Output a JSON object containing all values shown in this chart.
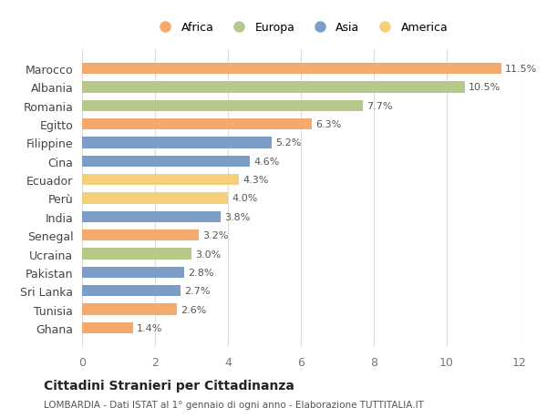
{
  "countries": [
    "Marocco",
    "Albania",
    "Romania",
    "Egitto",
    "Filippine",
    "Cina",
    "Ecuador",
    "Perù",
    "India",
    "Senegal",
    "Ucraina",
    "Pakistan",
    "Sri Lanka",
    "Tunisia",
    "Ghana"
  ],
  "values": [
    11.5,
    10.5,
    7.7,
    6.3,
    5.2,
    4.6,
    4.3,
    4.0,
    3.8,
    3.2,
    3.0,
    2.8,
    2.7,
    2.6,
    1.4
  ],
  "continents": [
    "Africa",
    "Europa",
    "Europa",
    "Africa",
    "Asia",
    "Asia",
    "America",
    "America",
    "Asia",
    "Africa",
    "Europa",
    "Asia",
    "Asia",
    "Africa",
    "Africa"
  ],
  "colors": {
    "Africa": "#F4A96D",
    "Europa": "#B5C98A",
    "Asia": "#7B9DC8",
    "America": "#F5D07A"
  },
  "legend_order": [
    "Africa",
    "Europa",
    "Asia",
    "America"
  ],
  "xlim": [
    0,
    12
  ],
  "xticks": [
    0,
    2,
    4,
    6,
    8,
    10,
    12
  ],
  "title": "Cittadini Stranieri per Cittadinanza",
  "subtitle": "LOMBARDIA - Dati ISTAT al 1° gennaio di ogni anno - Elaborazione TUTTITALIA.IT",
  "background_color": "#ffffff",
  "grid_color": "#dddddd",
  "bar_height": 0.6
}
